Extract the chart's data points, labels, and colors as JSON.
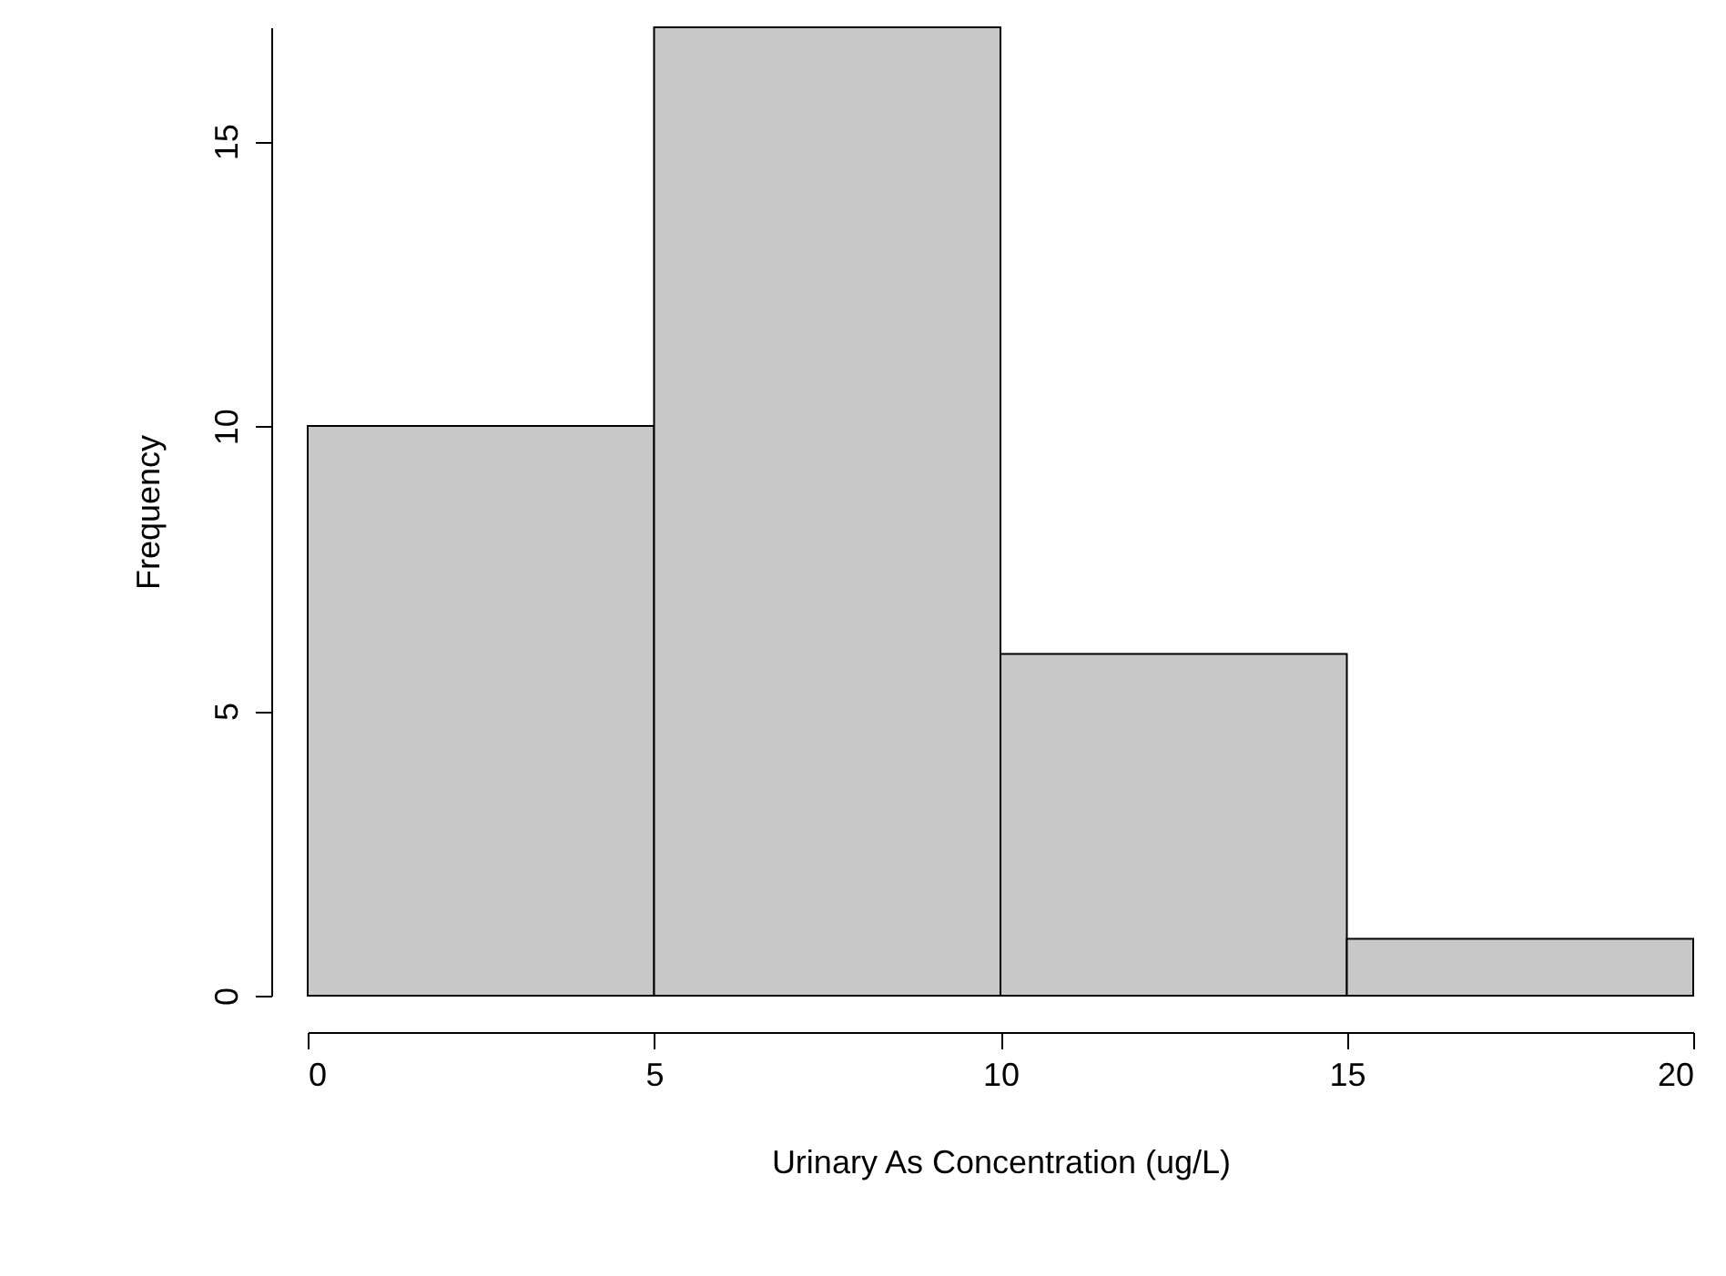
{
  "chart_data": {
    "type": "histogram",
    "xlabel": "Urinary As Concentration (ug/L)",
    "ylabel": "Frequency",
    "bins": [
      0,
      5,
      10,
      15,
      20
    ],
    "values": [
      10,
      17,
      6,
      1
    ],
    "color": "#c8c8c8",
    "xlim": [
      0,
      20
    ],
    "xticks": [
      0,
      5,
      10,
      15,
      20
    ],
    "ylim": [
      0,
      17
    ],
    "yticks": [
      0,
      5,
      10,
      15
    ],
    "grid": false
  }
}
